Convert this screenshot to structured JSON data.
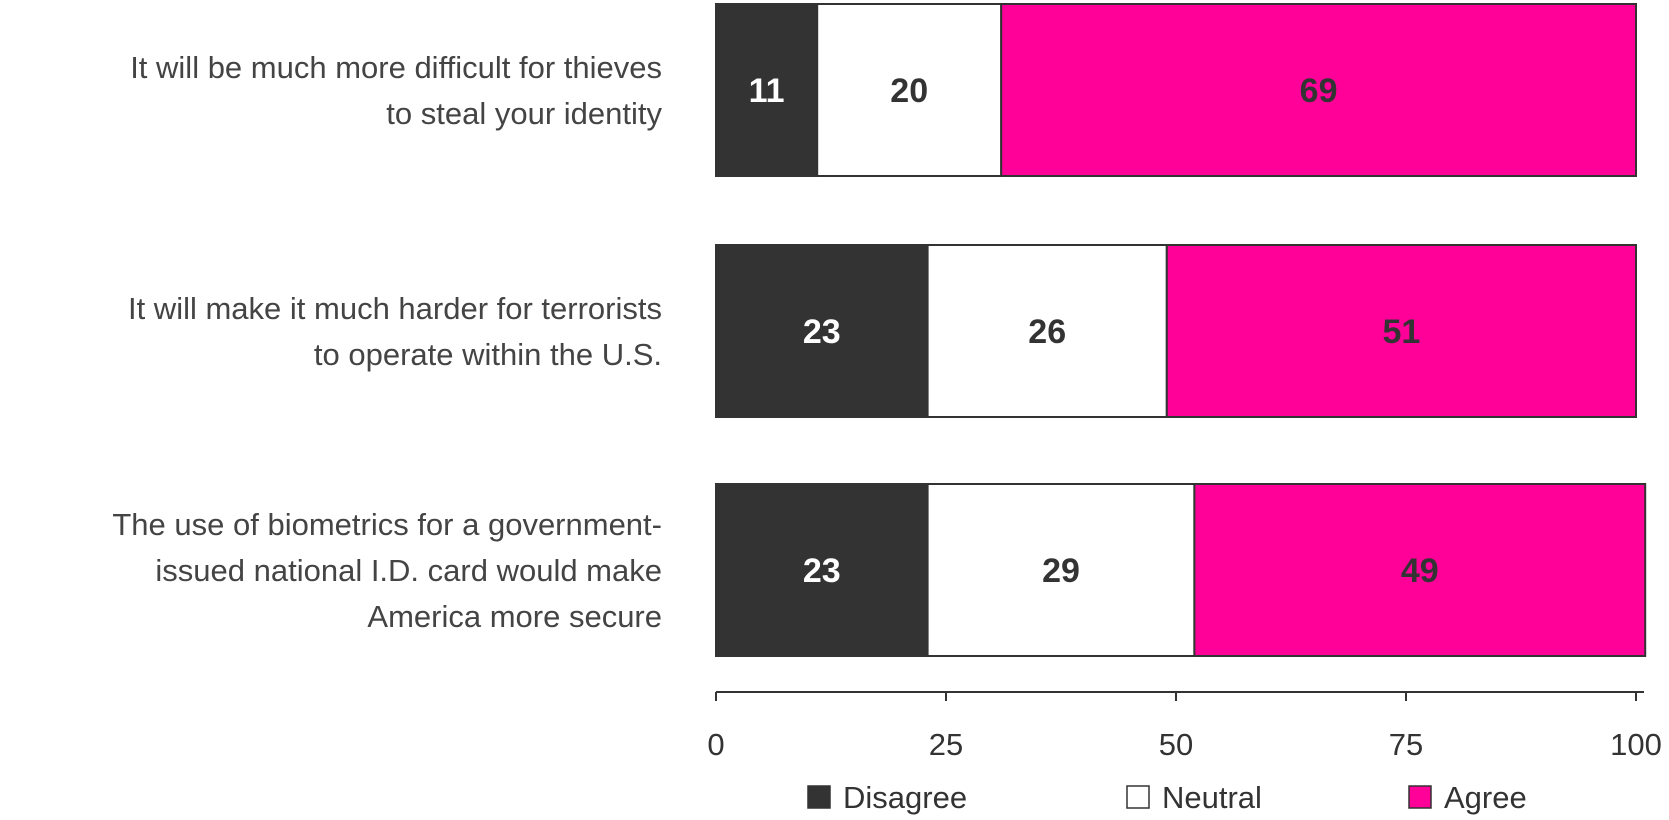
{
  "chart_data": {
    "type": "bar",
    "orientation": "horizontal",
    "stacked": true,
    "categories": [
      [
        "It will be much more difficult for thieves",
        "to steal your identity"
      ],
      [
        "It will make it much harder for terrorists",
        "to operate within the U.S."
      ],
      [
        "The use of biometrics for a government-",
        "issued national I.D. card would make",
        "America more secure"
      ]
    ],
    "series": [
      {
        "name": "Disagree",
        "color": "#333333",
        "label_color": "#ffffff",
        "values": [
          11,
          23,
          23
        ]
      },
      {
        "name": "Neutral",
        "color": "#ffffff",
        "label_color": "#333333",
        "values": [
          20,
          26,
          29
        ]
      },
      {
        "name": "Agree",
        "color": "#ff0099",
        "label_color": "#333333",
        "values": [
          69,
          51,
          49
        ]
      }
    ],
    "xlim": [
      0,
      100
    ],
    "xticks": [
      0,
      25,
      50,
      75,
      100
    ],
    "grid": false,
    "legend": "bottom",
    "title": "",
    "xlabel": "",
    "ylabel": ""
  }
}
